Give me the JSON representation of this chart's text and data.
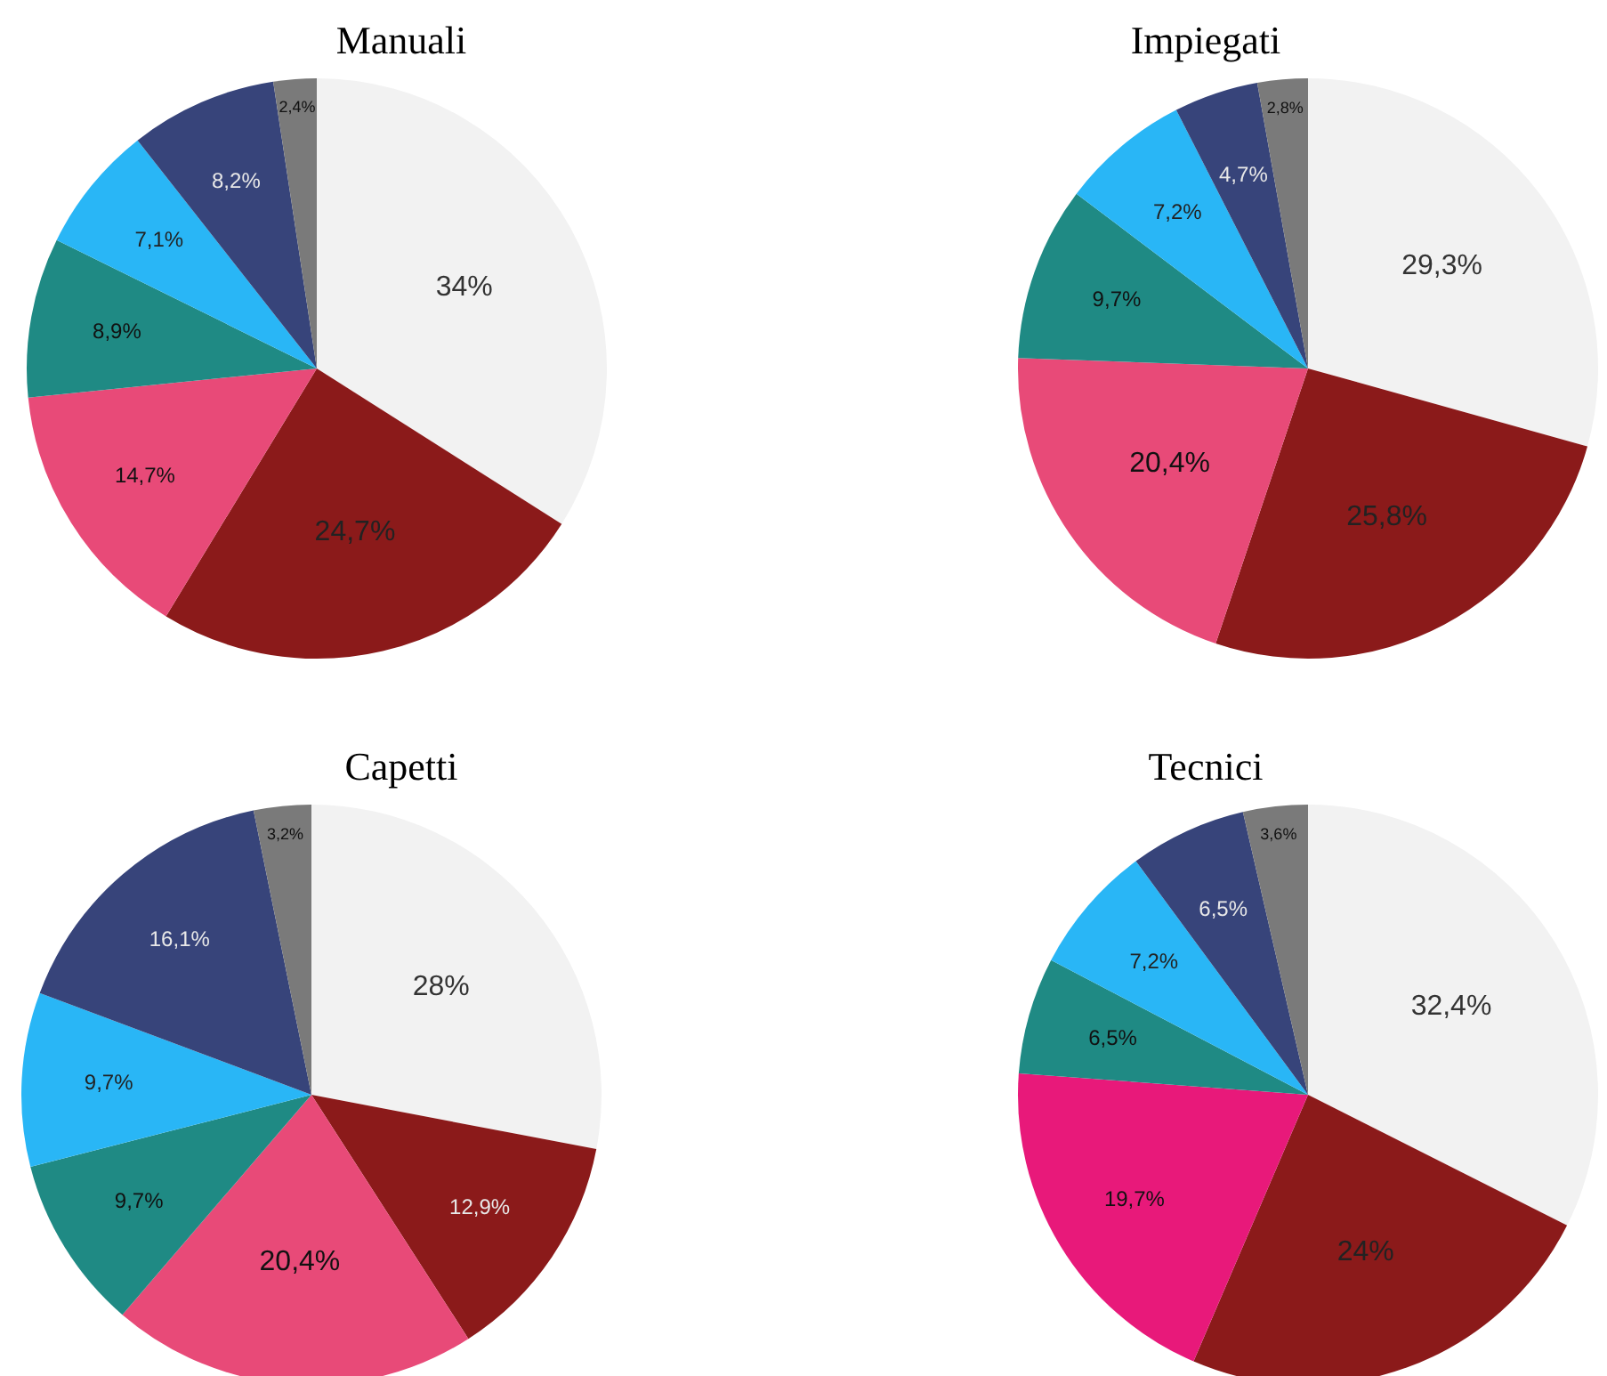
{
  "chart_data": [
    {
      "type": "pie",
      "title": "Manuali",
      "categories": [
        null,
        null,
        null,
        null,
        null,
        null,
        null
      ],
      "values": [
        34,
        24.7,
        14.7,
        8.9,
        7.1,
        8.2,
        2.4
      ],
      "value_labels": [
        "34%",
        "24,7%",
        "14,7%",
        "8,9%",
        "7,1%",
        "8,2%",
        "2,4%"
      ],
      "colors": [
        "#f2f2f2",
        "#8b1a1a",
        "#e84a78",
        "#1f8a84",
        "#29b6f6",
        "#37447a",
        "#7a7a7a"
      ]
    },
    {
      "type": "pie",
      "title": "Impiegati",
      "categories": [
        null,
        null,
        null,
        null,
        null,
        null,
        null
      ],
      "values": [
        29.3,
        25.8,
        20.4,
        9.7,
        7.2,
        4.7,
        2.8
      ],
      "value_labels": [
        "29,3%",
        "25,8%",
        "20,4%",
        "9,7%",
        "7,2%",
        "4,7%",
        "2,8%"
      ],
      "colors": [
        "#f2f2f2",
        "#8b1a1a",
        "#e84a78",
        "#1f8a84",
        "#29b6f6",
        "#37447a",
        "#7a7a7a"
      ]
    },
    {
      "type": "pie",
      "title": "Capetti",
      "categories": [
        null,
        null,
        null,
        null,
        null,
        null,
        null
      ],
      "values": [
        28,
        12.9,
        20.4,
        9.7,
        9.7,
        16.1,
        3.2
      ],
      "value_labels": [
        "28%",
        "12,9%",
        "20,4%",
        "9,7%",
        "9,7%",
        "16,1%",
        "3,2%"
      ],
      "colors": [
        "#f2f2f2",
        "#8b1a1a",
        "#e84a78",
        "#1f8a84",
        "#29b6f6",
        "#37447a",
        "#7a7a7a"
      ]
    },
    {
      "type": "pie",
      "title": "Tecnici",
      "categories": [
        null,
        null,
        null,
        null,
        null,
        null,
        null
      ],
      "values": [
        32.4,
        24,
        19.7,
        6.5,
        7.2,
        6.5,
        3.6
      ],
      "value_labels": [
        "32,4%",
        "24%",
        "19,7%",
        "6,5%",
        "7,2%",
        "6,5%",
        "3,6%"
      ],
      "colors": [
        "#f2f2f2",
        "#8b1a1a",
        "#e8197a",
        "#1f8a84",
        "#29b6f6",
        "#37447a",
        "#7a7a7a"
      ]
    }
  ]
}
